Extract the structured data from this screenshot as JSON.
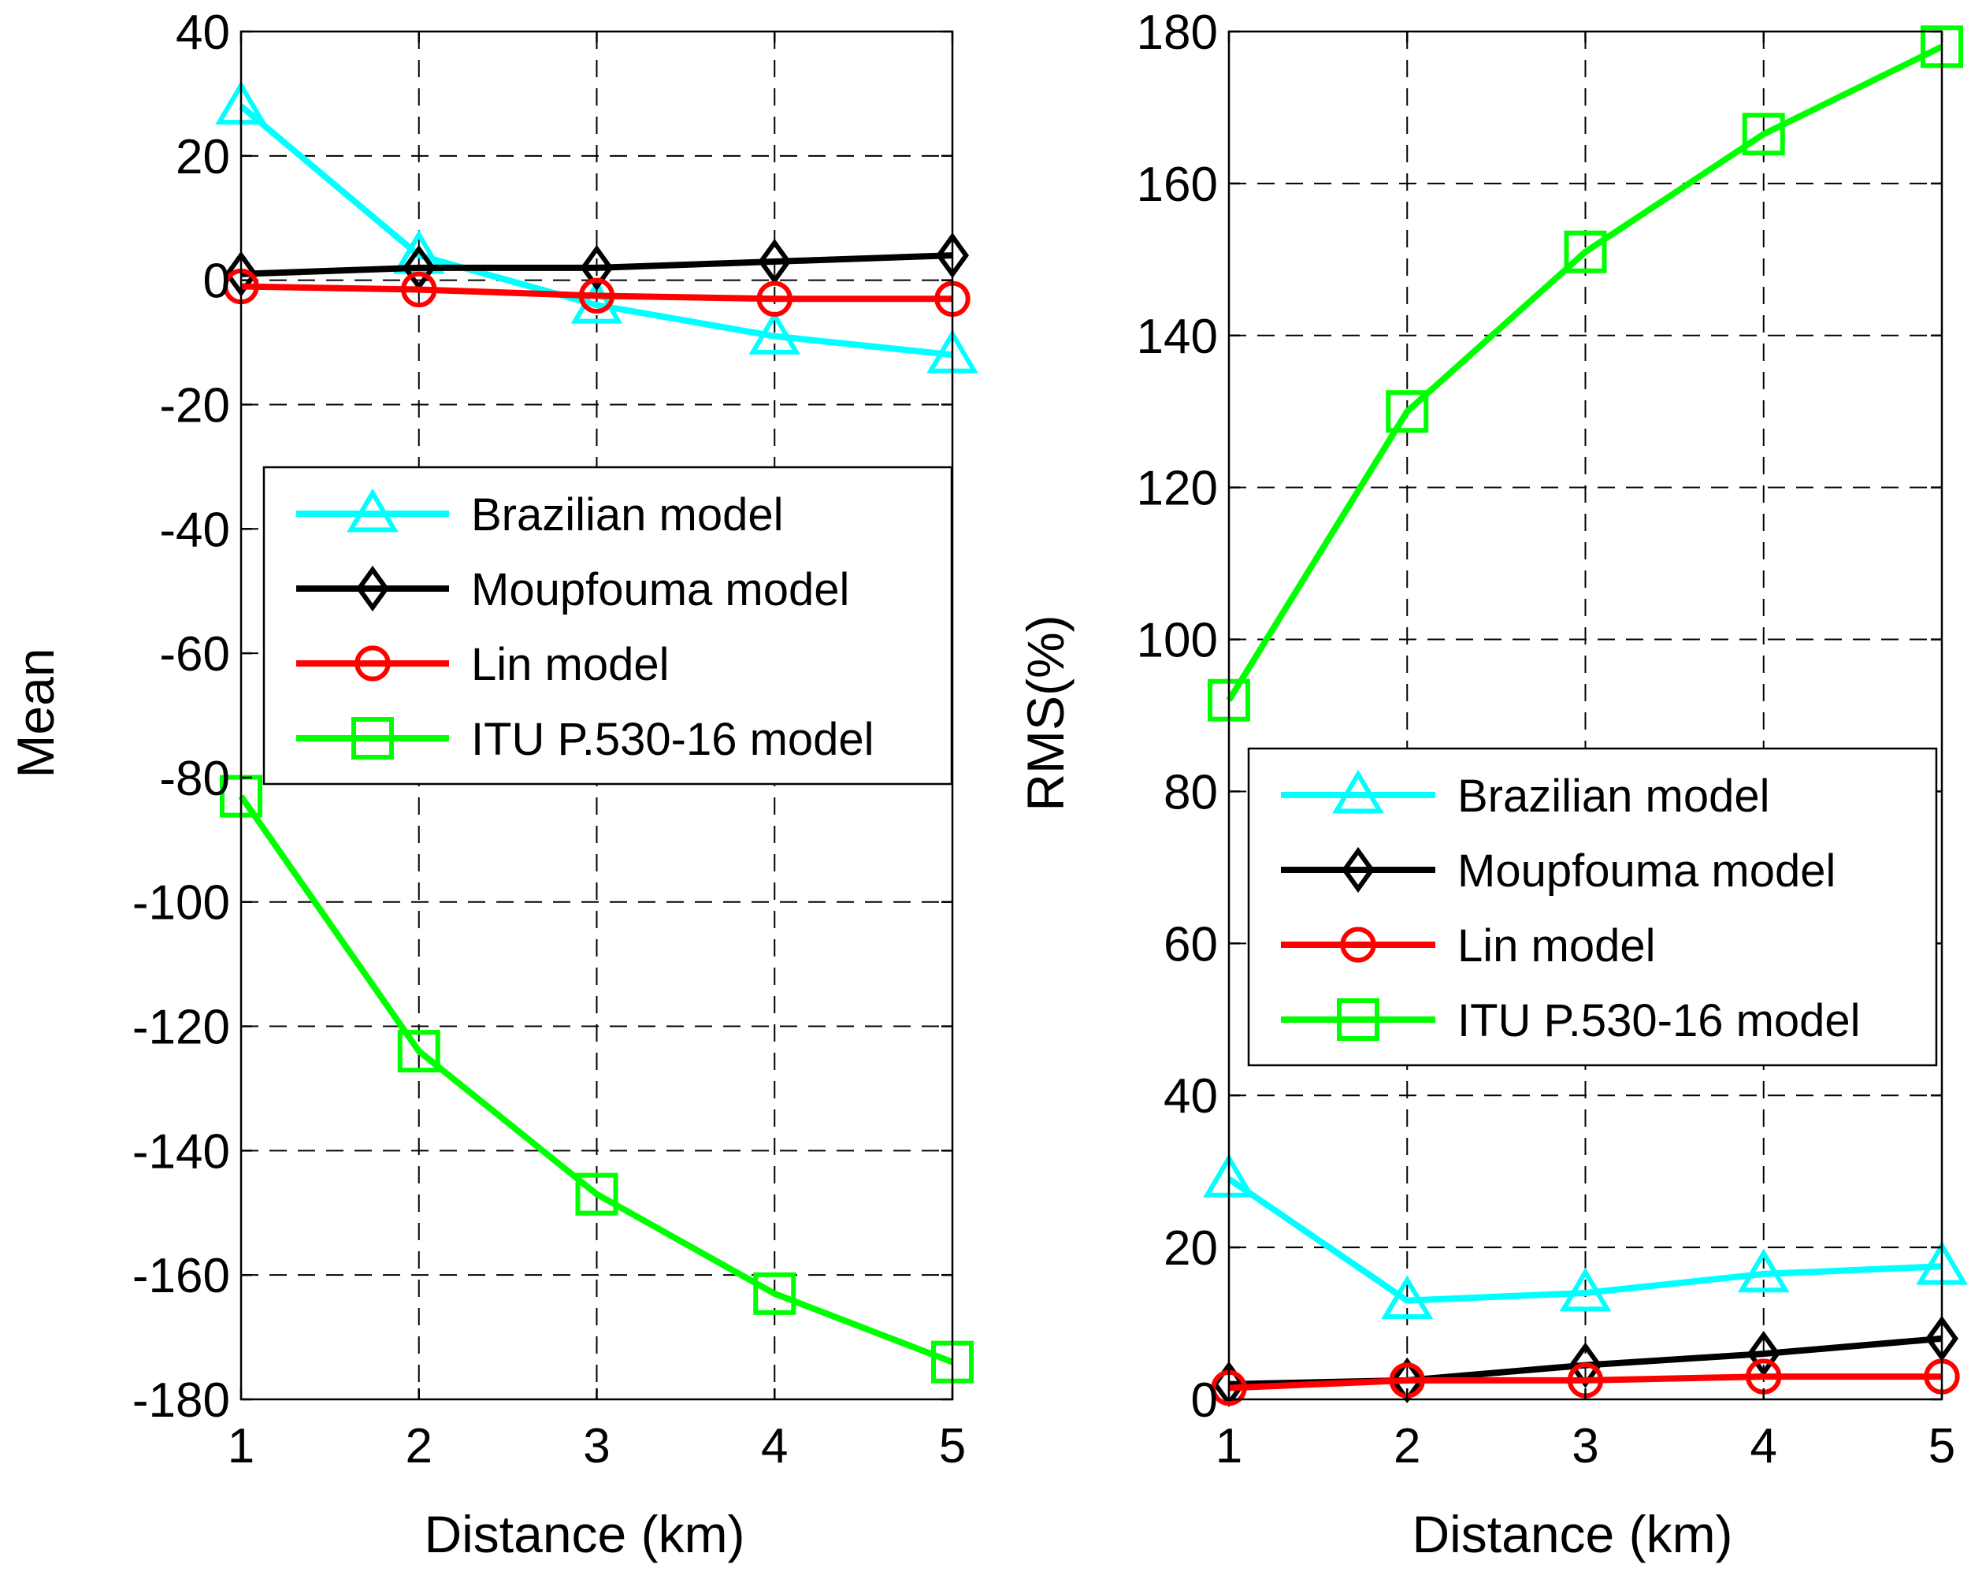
{
  "chart_data": [
    {
      "type": "line",
      "xlabel": "Distance (km)",
      "ylabel": "Mean",
      "x": [
        1,
        2,
        3,
        4,
        5
      ],
      "xticks": [
        "1",
        "2",
        "3",
        "4",
        "5"
      ],
      "ylim": [
        -180,
        40
      ],
      "yticks": [
        "40",
        "20",
        "0",
        "-20",
        "-40",
        "-60",
        "-80",
        "-100",
        "-120",
        "-140",
        "-160",
        "-180"
      ],
      "grid": true,
      "legend_position": "middle",
      "series": [
        {
          "name": "Brazilian model",
          "color": "#00ffff",
          "marker": "triangle",
          "values": [
            28,
            4,
            -4,
            -9,
            -12
          ]
        },
        {
          "name": "Moupfouma model",
          "color": "#000000",
          "marker": "diamond",
          "values": [
            1,
            2,
            2,
            3,
            4
          ]
        },
        {
          "name": "Lin model",
          "color": "#ff0000",
          "marker": "circle",
          "values": [
            -1,
            -1.5,
            -2.5,
            -3,
            -3
          ]
        },
        {
          "name": "ITU P.530-16 model",
          "color": "#00ff00",
          "marker": "square",
          "values": [
            -83,
            -124,
            -147,
            -163,
            -174
          ]
        }
      ]
    },
    {
      "type": "line",
      "xlabel": "Distance (km)",
      "ylabel": "RMS(%)",
      "x": [
        1,
        2,
        3,
        4,
        5
      ],
      "xticks": [
        "1",
        "2",
        "3",
        "4",
        "5"
      ],
      "ylim": [
        0,
        180
      ],
      "yticks": [
        "180",
        "160",
        "140",
        "120",
        "100",
        "80",
        "60",
        "40",
        "20",
        "0"
      ],
      "grid": true,
      "legend_position": "middle",
      "series": [
        {
          "name": "Brazilian model",
          "color": "#00ffff",
          "marker": "triangle",
          "values": [
            29,
            13,
            14,
            16.5,
            17.5
          ]
        },
        {
          "name": "Moupfouma model",
          "color": "#000000",
          "marker": "diamond",
          "values": [
            2,
            2.5,
            4.5,
            6,
            8
          ]
        },
        {
          "name": "Lin model",
          "color": "#ff0000",
          "marker": "circle",
          "values": [
            1.5,
            2.5,
            2.5,
            3,
            3
          ]
        },
        {
          "name": "ITU P.530-16 model",
          "color": "#00ff00",
          "marker": "square",
          "values": [
            92,
            130,
            151,
            166.5,
            178
          ]
        }
      ]
    }
  ]
}
